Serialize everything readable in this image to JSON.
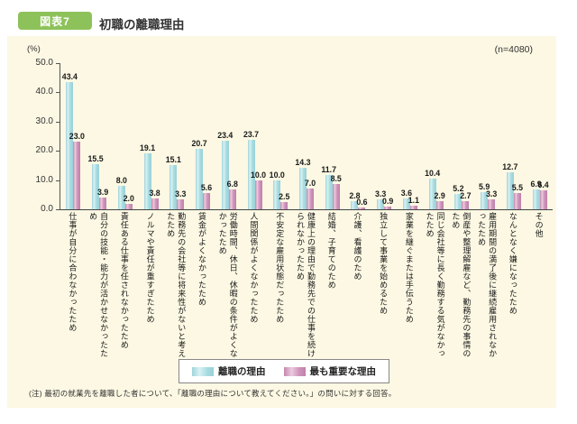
{
  "header": {
    "badge": "図表7",
    "title": "初職の離職理由"
  },
  "panel": {
    "percent_unit": "(%)",
    "sample_size": "(n=4080)"
  },
  "chart_data": {
    "type": "bar",
    "title": "初職の離職理由",
    "ylabel": "(%)",
    "ylim": [
      0,
      50
    ],
    "yticks": [
      "50.0",
      "40.0",
      "30.0",
      "20.0",
      "10.0",
      "0.0"
    ],
    "grid": false,
    "legend_position": "bottom",
    "categories": [
      "仕事が自分に合わなかったため",
      "自分の技能・能力が活かせなかったため",
      "責任ある仕事を任されなかったため",
      "ノルマや責任が重すぎたため",
      "勤務先の会社等に将来性がないと考えたため",
      "賃金がよくなかったため",
      "労働時間、休日、休暇の条件がよくなかったため",
      "人間関係がよくなかったため",
      "不安定な雇用状態だったため",
      "健康上の理由で勤務先での仕事を続けられなかったため",
      "結婚、子育てのため",
      "介護、看護のため",
      "独立して事業を始めるため",
      "家業を継ぐまたは手伝うため",
      "同じ会社等に長く勤務する気がなかったため",
      "倒産や整理解雇など、勤務先の事情のため",
      "雇用期間の満了後に継続雇用されなかったため",
      "なんとなく嫌になったため",
      "その他"
    ],
    "series": [
      {
        "name": "離職の理由",
        "color": "#a8dce1",
        "values": [
          43.4,
          15.5,
          8.0,
          19.1,
          15.1,
          20.7,
          23.4,
          23.7,
          10.0,
          14.3,
          11.7,
          2.8,
          3.3,
          3.6,
          10.4,
          5.2,
          5.9,
          12.7,
          6.9
        ]
      },
      {
        "name": "最も重要な理由",
        "color": "#cf94bb",
        "values": [
          23.0,
          3.9,
          2.0,
          3.8,
          3.3,
          5.6,
          6.8,
          10.0,
          2.5,
          7.0,
          8.5,
          0.6,
          0.9,
          1.1,
          2.9,
          2.7,
          3.3,
          5.5,
          6.4
        ]
      }
    ]
  },
  "colors": {
    "panel_background": "#fcf8e3",
    "badge_green": "#8dc25a",
    "bar_cyan": "#a8dce1",
    "bar_pink": "#cf94bb",
    "axis": "#555555"
  },
  "footnote": "(注) 最初の就業先を離職した者について、「離職の理由について教えてください。」の問いに対する回答。"
}
